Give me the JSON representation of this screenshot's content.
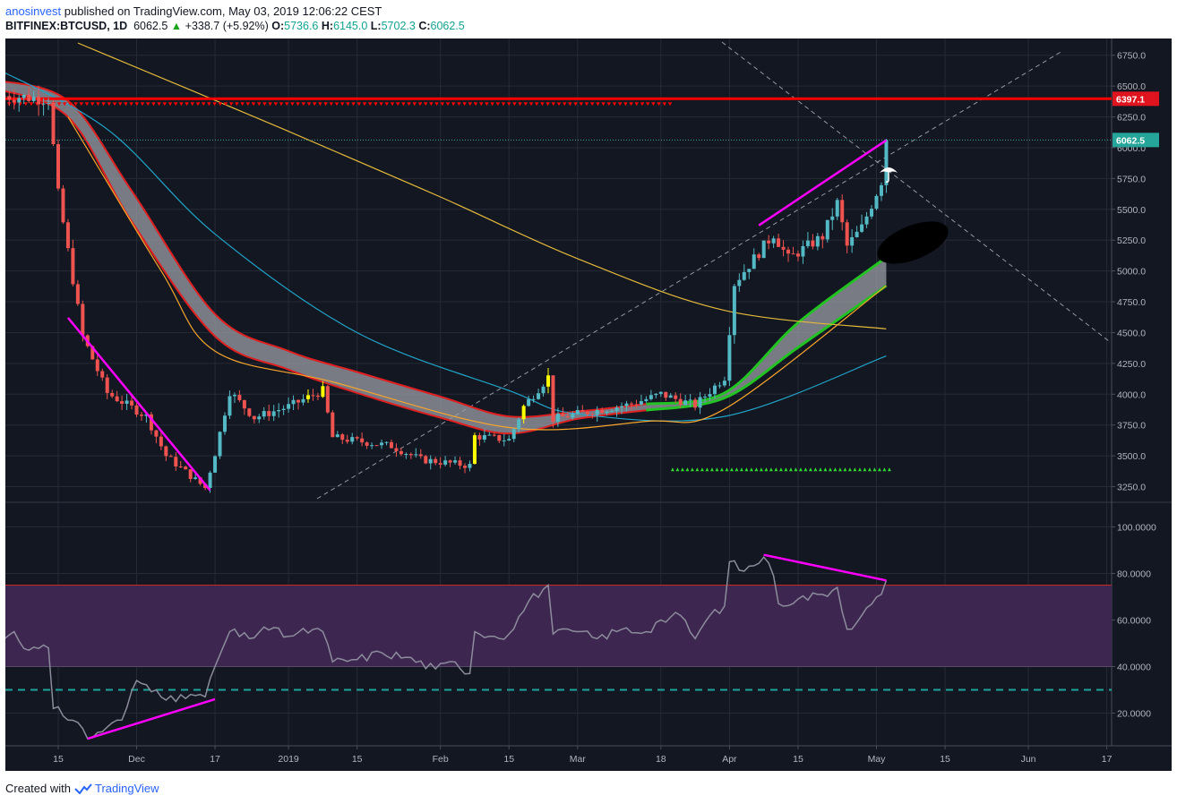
{
  "header": {
    "author": "anosinvest",
    "published_text": "published on TradingView.com, May 03, 2019 12:06:22 CEST",
    "symbol": "BITFINEX:BTCUSD, 1D",
    "last": "6062.5",
    "change": "+338.7 (+5.92%)",
    "o_label": "O:",
    "o_val": "5736.6",
    "h_label": "H:",
    "h_val": "6145.0",
    "l_label": "L:",
    "l_val": "5702.3",
    "c_label": "C:",
    "c_val": "6062.5"
  },
  "footer": {
    "created_with": "Created with",
    "brand": "TradingView"
  },
  "colors": {
    "background": "#131722",
    "up": "#53b9c4",
    "down": "#ef5350",
    "highlight": "#ffff00",
    "resistance": "#ff0000",
    "trend": "#ff00ff",
    "ma_teal": "#20a4c8",
    "ma_orange": "#f7a52c",
    "ma_gold": "#e3b93a",
    "rsi": "#8c8c9c",
    "rsi_band": "#3d2751"
  },
  "chart_data": [
    {
      "type": "candlestick",
      "title": "BITFINEX:BTCUSD, 1D",
      "ylim": [
        3100,
        6850
      ],
      "y_ticks": [
        3250,
        3500,
        3750,
        4000,
        4250,
        4500,
        4750,
        5000,
        5250,
        5500,
        5750,
        6000,
        6250,
        6500,
        6750
      ],
      "y_tick_labels": [
        "3250.0",
        "3500.0",
        "3750.0",
        "4000.0",
        "4250.0",
        "4500.0",
        "4750.0",
        "5000.0",
        "5250.0",
        "5500.0",
        "5750.0",
        "6000.0",
        "6250.0",
        "6500.0",
        "6750.0"
      ],
      "x_tick_labels": [
        "15",
        "Dec",
        "17",
        "2019",
        "15",
        "Feb",
        "15",
        "Mar",
        "18",
        "Apr",
        "15",
        "May",
        "15",
        "Jun",
        "17"
      ],
      "x_tick_dates": [
        "2018-11-15",
        "2018-12-01",
        "2018-12-17",
        "2019-01-01",
        "2019-01-15",
        "2019-02-01",
        "2019-02-15",
        "2019-03-01",
        "2019-03-18",
        "2019-04-01",
        "2019-04-15",
        "2019-05-01",
        "2019-05-15",
        "2019-06-01",
        "2019-06-17"
      ],
      "price_labels": [
        {
          "label": "6397.1",
          "value": 6397.1,
          "kind": "resistance"
        },
        {
          "label": "6062.5",
          "value": 6062.5,
          "kind": "last"
        }
      ],
      "close_anchors": [
        [
          "2018-11-04",
          6420
        ],
        [
          "2018-11-13",
          6400
        ],
        [
          "2018-11-15",
          5620
        ],
        [
          "2018-11-20",
          4470
        ],
        [
          "2018-11-25",
          4010
        ],
        [
          "2018-12-03",
          3820
        ],
        [
          "2018-12-07",
          3500
        ],
        [
          "2018-12-15",
          3240
        ],
        [
          "2018-12-17",
          3520
        ],
        [
          "2018-12-20",
          4020
        ],
        [
          "2018-12-25",
          3810
        ],
        [
          "2019-01-01",
          3900
        ],
        [
          "2019-01-08",
          4030
        ],
        [
          "2019-01-10",
          3650
        ],
        [
          "2019-01-15",
          3620
        ],
        [
          "2019-01-22",
          3580
        ],
        [
          "2019-01-28",
          3470
        ],
        [
          "2019-02-07",
          3420
        ],
        [
          "2019-02-08",
          3660
        ],
        [
          "2019-02-15",
          3630
        ],
        [
          "2019-02-18",
          3900
        ],
        [
          "2019-02-23",
          4140
        ],
        [
          "2019-02-24",
          3800
        ],
        [
          "2019-03-01",
          3840
        ],
        [
          "2019-03-12",
          3920
        ],
        [
          "2019-03-18",
          4000
        ],
        [
          "2019-03-25",
          3910
        ],
        [
          "2019-03-31",
          4140
        ],
        [
          "2019-04-02",
          4900
        ],
        [
          "2019-04-10",
          5300
        ],
        [
          "2019-04-13",
          5100
        ],
        [
          "2019-04-20",
          5280
        ],
        [
          "2019-04-23",
          5550
        ],
        [
          "2019-04-25",
          5200
        ],
        [
          "2019-04-28",
          5350
        ],
        [
          "2019-05-02",
          5730
        ],
        [
          "2019-05-03",
          6062.5
        ]
      ],
      "resistance_level": 6397.1,
      "support_marker_level": 3390,
      "moving_averages": [
        {
          "color": "#20a4c8",
          "points": [
            [
              "2018-11-02",
              6650
            ],
            [
              "2018-11-25",
              6150
            ],
            [
              "2018-12-17",
              5300
            ],
            [
              "2019-01-15",
              4500
            ],
            [
              "2019-02-15",
              4030
            ],
            [
              "2019-03-01",
              3840
            ],
            [
              "2019-03-31",
              3820
            ],
            [
              "2019-05-03",
              4310
            ]
          ]
        },
        {
          "color": "#f7a52c",
          "points": [
            [
              "2018-11-17",
              6250
            ],
            [
              "2018-12-06",
              5000
            ],
            [
              "2018-12-17",
              4350
            ],
            [
              "2019-01-10",
              4100
            ],
            [
              "2019-02-15",
              3730
            ],
            [
              "2019-03-15",
              3780
            ],
            [
              "2019-03-31",
              3880
            ],
            [
              "2019-05-03",
              4880
            ]
          ]
        },
        {
          "color": "#e3b93a",
          "points": [
            [
              "2018-11-19",
              6850
            ],
            [
              "2018-12-31",
              6150
            ],
            [
              "2019-02-01",
              5600
            ],
            [
              "2019-03-01",
              5100
            ],
            [
              "2019-03-31",
              4680
            ],
            [
              "2019-05-03",
              4530
            ]
          ]
        }
      ],
      "cloud_upper": [
        [
          "2018-11-02",
          6550
        ],
        [
          "2018-11-17",
          6380
        ],
        [
          "2018-11-30",
          5650
        ],
        [
          "2018-12-17",
          4650
        ],
        [
          "2019-01-01",
          4350
        ],
        [
          "2019-01-15",
          4180
        ],
        [
          "2019-02-01",
          3980
        ],
        [
          "2019-02-15",
          3820
        ],
        [
          "2019-03-01",
          3860
        ],
        [
          "2019-03-15",
          3920
        ],
        [
          "2019-03-31",
          4010
        ],
        [
          "2019-04-15",
          4580
        ],
        [
          "2019-05-03",
          5110
        ]
      ],
      "cloud_lower": [
        [
          "2018-11-02",
          6480
        ],
        [
          "2018-11-17",
          6250
        ],
        [
          "2018-11-30",
          5400
        ],
        [
          "2018-12-17",
          4470
        ],
        [
          "2019-01-01",
          4200
        ],
        [
          "2019-01-15",
          4010
        ],
        [
          "2019-02-01",
          3810
        ],
        [
          "2019-02-15",
          3680
        ],
        [
          "2019-03-01",
          3800
        ],
        [
          "2019-03-15",
          3870
        ],
        [
          "2019-03-31",
          3970
        ],
        [
          "2019-04-15",
          4380
        ],
        [
          "2019-05-03",
          4880
        ]
      ],
      "trendlines": [
        {
          "from": [
            "2018-11-17",
            4620
          ],
          "to": [
            "2018-12-16",
            3220
          ],
          "color": "#ff00ff"
        },
        {
          "from": [
            "2019-04-07",
            5370
          ],
          "to": [
            "2019-05-03",
            6060
          ],
          "color": "#ff00ff"
        }
      ]
    },
    {
      "type": "line",
      "title": "",
      "ylim": [
        0,
        110
      ],
      "y_ticks": [
        20,
        40,
        60,
        80,
        100
      ],
      "y_tick_labels": [
        "20.0000",
        "40.0000",
        "60.0000",
        "80.0000",
        "100.0000"
      ],
      "band": [
        40,
        75
      ],
      "overbought_line": 75,
      "oversold_line": 30,
      "series": [
        {
          "values": [
            [
              "2018-11-01",
              50
            ],
            [
              "2018-11-06",
              55
            ],
            [
              "2018-11-09",
              47
            ],
            [
              "2018-11-13",
              48
            ],
            [
              "2018-11-14",
              22
            ],
            [
              "2018-11-19",
              16
            ],
            [
              "2018-11-21",
              9
            ],
            [
              "2018-11-25",
              14
            ],
            [
              "2018-11-28",
              17
            ],
            [
              "2018-12-01",
              34
            ],
            [
              "2018-12-05",
              30
            ],
            [
              "2018-12-09",
              25
            ],
            [
              "2018-12-12",
              28
            ],
            [
              "2018-12-15",
              27
            ],
            [
              "2018-12-17",
              40
            ],
            [
              "2018-12-20",
              55
            ],
            [
              "2018-12-24",
              52
            ],
            [
              "2018-12-27",
              57
            ],
            [
              "2019-01-01",
              53
            ],
            [
              "2019-01-06",
              56
            ],
            [
              "2019-01-08",
              55
            ],
            [
              "2019-01-10",
              42
            ],
            [
              "2019-01-15",
              43
            ],
            [
              "2019-01-20",
              46
            ],
            [
              "2019-01-25",
              44
            ],
            [
              "2019-01-31",
              39
            ],
            [
              "2019-02-04",
              42
            ],
            [
              "2019-02-07",
              37
            ],
            [
              "2019-02-08",
              55
            ],
            [
              "2019-02-12",
              53
            ],
            [
              "2019-02-15",
              54
            ],
            [
              "2019-02-19",
              68
            ],
            [
              "2019-02-23",
              75
            ],
            [
              "2019-02-24",
              54
            ],
            [
              "2019-03-01",
              55
            ],
            [
              "2019-03-05",
              52
            ],
            [
              "2019-03-10",
              56
            ],
            [
              "2019-03-15",
              55
            ],
            [
              "2019-03-18",
              60
            ],
            [
              "2019-03-22",
              62
            ],
            [
              "2019-03-25",
              52
            ],
            [
              "2019-03-28",
              62
            ],
            [
              "2019-03-31",
              66
            ],
            [
              "2019-04-01",
              85
            ],
            [
              "2019-04-04",
              81
            ],
            [
              "2019-04-08",
              87
            ],
            [
              "2019-04-10",
              79
            ],
            [
              "2019-04-11",
              67
            ],
            [
              "2019-04-15",
              69
            ],
            [
              "2019-04-20",
              71
            ],
            [
              "2019-04-23",
              74
            ],
            [
              "2019-04-25",
              56
            ],
            [
              "2019-04-28",
              62
            ],
            [
              "2019-05-02",
              71
            ],
            [
              "2019-05-03",
              77
            ]
          ]
        }
      ],
      "trendlines": [
        {
          "from": [
            "2018-11-21",
            9
          ],
          "to": [
            "2018-12-17",
            26
          ],
          "color": "#ff00ff"
        },
        {
          "from": [
            "2019-04-08",
            88
          ],
          "to": [
            "2019-05-03",
            77
          ],
          "color": "#ff00ff"
        }
      ]
    }
  ]
}
